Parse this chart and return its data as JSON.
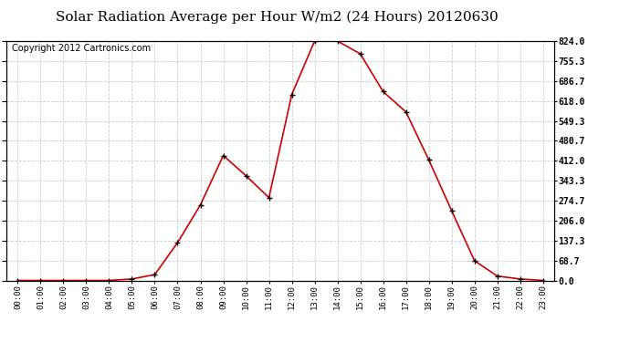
{
  "title": "Solar Radiation Average per Hour W/m2 (24 Hours) 20120630",
  "copyright": "Copyright 2012 Cartronics.com",
  "hours": [
    "00:00",
    "01:00",
    "02:00",
    "03:00",
    "04:00",
    "05:00",
    "06:00",
    "07:00",
    "08:00",
    "09:00",
    "10:00",
    "11:00",
    "12:00",
    "13:00",
    "14:00",
    "15:00",
    "16:00",
    "17:00",
    "18:00",
    "19:00",
    "20:00",
    "21:00",
    "22:00",
    "23:00"
  ],
  "values": [
    0,
    0,
    0,
    0,
    0,
    5,
    20,
    130,
    260,
    430,
    360,
    285,
    640,
    824,
    824,
    780,
    650,
    580,
    415,
    240,
    68,
    15,
    5,
    0
  ],
  "line_color": "#cc0000",
  "marker": "+",
  "marker_color": "#000000",
  "bg_color": "#ffffff",
  "grid_color": "#cccccc",
  "yticks": [
    0.0,
    68.7,
    137.3,
    206.0,
    274.7,
    343.3,
    412.0,
    480.7,
    549.3,
    618.0,
    686.7,
    755.3,
    824.0
  ],
  "ylim": [
    0,
    824.0
  ],
  "title_fontsize": 11,
  "copyright_fontsize": 7
}
